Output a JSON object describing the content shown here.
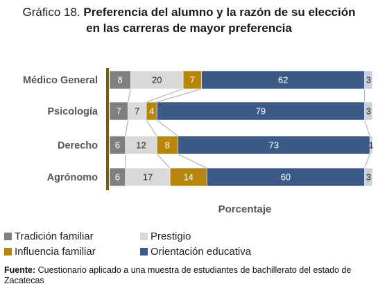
{
  "figure": {
    "title_prefix": "Gráfico 18.",
    "title_line1": "Preferencia del alumno y la razón de su elección",
    "title_line2": "en las carreras de mayor preferencia"
  },
  "chart_data": {
    "type": "bar",
    "orientation": "horizontal",
    "stacked": true,
    "categories": [
      "Médico General",
      "Psicología",
      "Derecho",
      "Agrónomo"
    ],
    "series": [
      {
        "name": "Tradición familiar",
        "values": [
          8,
          7,
          6,
          6
        ],
        "color": "#7f7f7f"
      },
      {
        "name": "Prestigio",
        "values": [
          20,
          7,
          12,
          17
        ],
        "color": "#d9d9d9"
      },
      {
        "name": "Influencia familiar",
        "values": [
          7,
          4,
          8,
          14
        ],
        "color": "#b8860b"
      },
      {
        "name": "Orientación educativa",
        "values": [
          62,
          79,
          73,
          60
        ],
        "color": "#3b5a86"
      },
      {
        "name": "",
        "values": [
          3,
          3,
          1,
          3
        ],
        "color": "#c8d0dc"
      }
    ],
    "xlabel": "Porcentaje",
    "xlim": [
      0,
      100
    ],
    "grid": false,
    "legend": "bottom",
    "series_lines": true
  },
  "legend_labels": [
    "Tradición familiar",
    "Prestigio",
    "Influencia familiar",
    "Orientación educativa"
  ],
  "source": {
    "label": "Fuente:",
    "text": " Cuestionario aplicado a una muestra de estudiantes de bachillerato del estado de Zacatecas"
  }
}
